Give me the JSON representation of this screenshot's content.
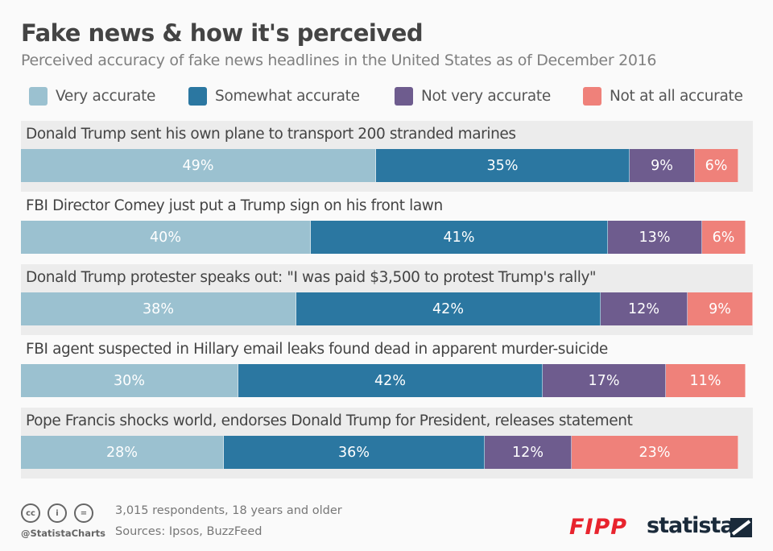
{
  "chart_data": {
    "type": "bar",
    "orientation": "horizontal",
    "stacked": true,
    "title": "Fake news & how it's perceived",
    "subtitle": "Perceived accuracy of fake news headlines in the United States as of December 2016",
    "legend_placement": "top",
    "categories": [
      "Donald Trump sent his own plane to transport 200 stranded marines",
      "FBI Director Comey just put a Trump sign on his front lawn",
      "Donald Trump protester speaks out: \"I was paid $3,500 to protest Trump's rally\"",
      "FBI agent suspected in Hillary email leaks found dead in apparent murder-suicide",
      "Pope Francis shocks world, endorses Donald Trump for President, releases statement"
    ],
    "series": [
      {
        "name": "Very accurate",
        "color": "#9bc1d0",
        "values": [
          49,
          40,
          38,
          30,
          28
        ]
      },
      {
        "name": "Somewhat accurate",
        "color": "#2b77a1",
        "values": [
          35,
          41,
          42,
          42,
          36
        ]
      },
      {
        "name": "Not very accurate",
        "color": "#6e5c8e",
        "values": [
          9,
          13,
          12,
          17,
          12
        ]
      },
      {
        "name": "Not at all accurate",
        "color": "#ef817a",
        "values": [
          6,
          6,
          9,
          11,
          23
        ]
      }
    ],
    "value_suffix": "%"
  },
  "footer": {
    "note": "3,015 respondents, 18 years and older",
    "sources": "Sources: Ipsos, BuzzFeed",
    "handle": "@StatistaCharts",
    "logo_fipp": "FIPP",
    "logo_statista": "statista"
  }
}
